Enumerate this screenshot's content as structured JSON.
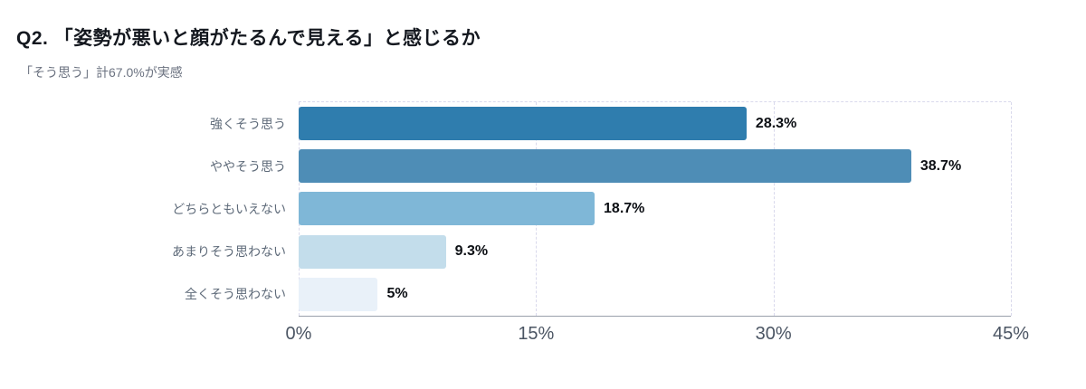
{
  "header": {
    "title": "Q2. 「姿勢が悪いと顔がたるんで見える」と感じるか",
    "subtitle": "「そう思う」計67.0%が実感"
  },
  "chart_data": {
    "type": "bar",
    "orientation": "horizontal",
    "title": "Q2. 「姿勢が悪いと顔がたるんで見える」と感じるか",
    "subtitle": "「そう思う」計67.0%が実感",
    "categories": [
      "強くそう思う",
      "ややそう思う",
      "どちらともいえない",
      "あまりそう思わない",
      "全くそう思わない"
    ],
    "values": [
      28.3,
      38.7,
      18.7,
      9.3,
      5
    ],
    "value_labels": [
      "28.3%",
      "38.7%",
      "18.7%",
      "9.3%",
      "5%"
    ],
    "bar_colors": [
      "#2f7dae",
      "#4e8db6",
      "#7fb7d7",
      "#c3ddeb",
      "#e9f1f9"
    ],
    "xlim": [
      0,
      45
    ],
    "x_ticks": [
      "0%",
      "15%",
      "30%",
      "45%"
    ],
    "x_tick_values": [
      0,
      15,
      30,
      45
    ],
    "xlabel": "",
    "ylabel": "",
    "grid": "dashed-vertical",
    "legend": "none"
  }
}
